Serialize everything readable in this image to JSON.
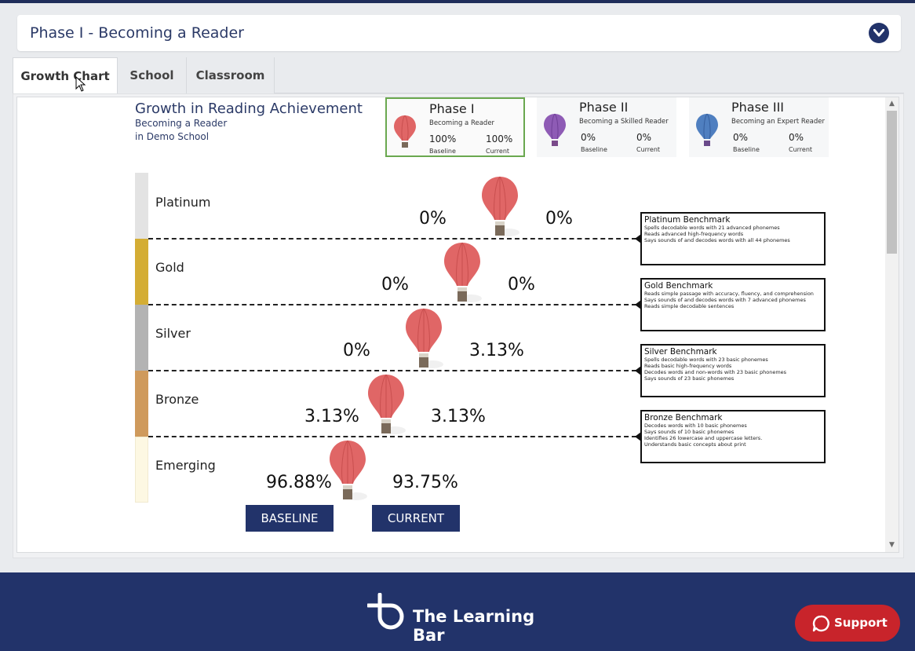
{
  "phase_header": {
    "title": "Phase I - Becoming a Reader"
  },
  "tabs": [
    {
      "label": "Growth Chart",
      "active": true
    },
    {
      "label": "School",
      "active": false
    },
    {
      "label": "Classroom",
      "active": false
    }
  ],
  "chart": {
    "title": "Growth in Reading Achievement",
    "subtitle1": "Becoming a Reader",
    "subtitle2": "in Demo School"
  },
  "phases": [
    {
      "name": "Phase I",
      "sub": "Becoming a Reader",
      "baseline": "100%",
      "current": "100%",
      "baseline_label": "Baseline",
      "current_label": "Current",
      "color": "#e06666"
    },
    {
      "name": "Phase II",
      "sub": "Becoming a Skilled Reader",
      "baseline": "0%",
      "current": "0%",
      "baseline_label": "Baseline",
      "current_label": "Current",
      "color": "#8e5bb5"
    },
    {
      "name": "Phase III",
      "sub": "Becoming an Expert Reader",
      "baseline": "0%",
      "current": "0%",
      "baseline_label": "Baseline",
      "current_label": "Current",
      "color": "#4f7fc0"
    }
  ],
  "levels": [
    {
      "name": "Platinum",
      "color": "#e3e3e3",
      "baseline": "0%",
      "current": "0%"
    },
    {
      "name": "Gold",
      "color": "#d4ad34",
      "baseline": "0%",
      "current": "0%"
    },
    {
      "name": "Silver",
      "color": "#b3b3b3",
      "baseline": "0%",
      "current": "3.13%"
    },
    {
      "name": "Bronze",
      "color": "#cf9a5c",
      "baseline": "3.13%",
      "current": "3.13%"
    },
    {
      "name": "Emerging",
      "color": "#fdf8e3",
      "baseline": "96.88%",
      "current": "93.75%"
    }
  ],
  "benchmarks": [
    {
      "title": "Platinum Benchmark",
      "lines": [
        "Spells decodable words with 21 advanced phonemes",
        "Reads advanced high-frequency words",
        "Says sounds of and decodes words with all 44 phonemes"
      ]
    },
    {
      "title": "Gold Benchmark",
      "lines": [
        "Reads simple passage with accuracy, fluency, and comprehension",
        "Says sounds of and decodes words with 7 advanced phonemes",
        "Reads simple decodable sentences"
      ]
    },
    {
      "title": "Silver Benchmark",
      "lines": [
        "Spells decodable words with 23 basic phonemes",
        "Reads basic high-frequency words",
        "Decodes words and non-words with 23 basic phonemes",
        "Says sounds of 23 basic phonemes"
      ]
    },
    {
      "title": "Bronze Benchmark",
      "lines": [
        "Decodes words with 10 basic phonemes",
        "Says sounds of 10 basic phonemes",
        "Identifies 26 lowercase and uppercase letters.",
        "Understands basic concepts about print"
      ]
    }
  ],
  "buttons": {
    "baseline": "BASELINE",
    "current": "CURRENT"
  },
  "footer": {
    "brand": "The Learning Bar",
    "support": "Support"
  },
  "colors": {
    "navy": "#22336a",
    "balloon": "#e06666",
    "support": "#c8242b"
  }
}
